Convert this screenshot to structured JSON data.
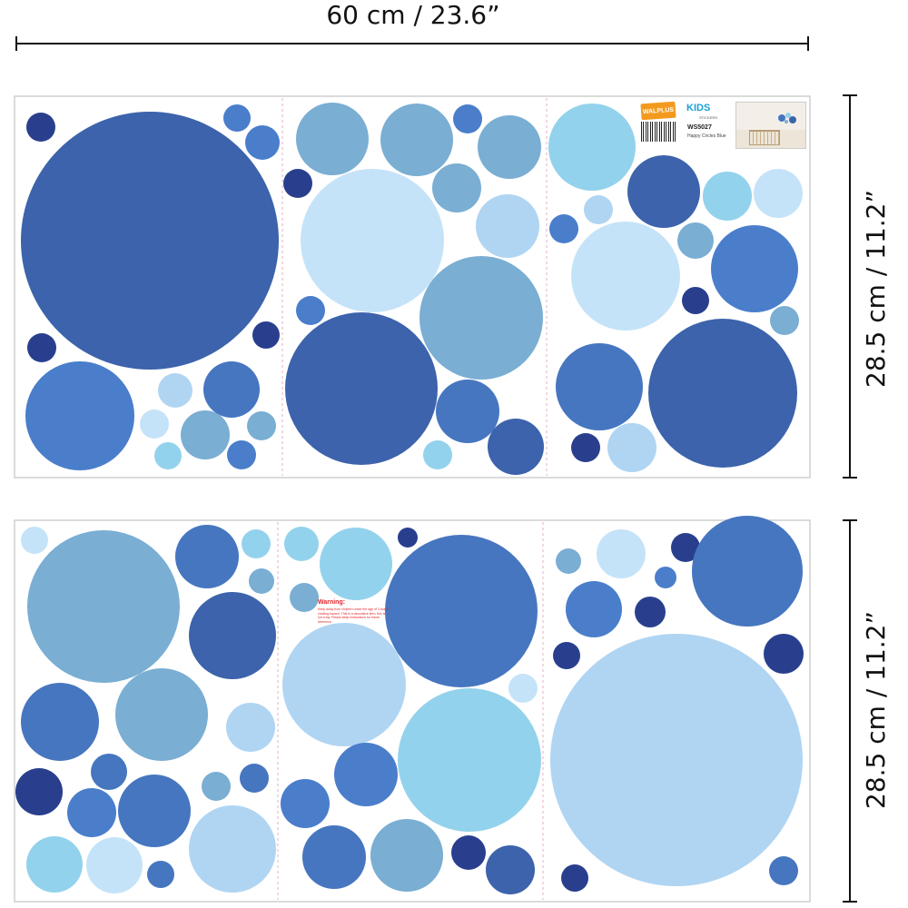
{
  "dimensions": {
    "width_label": "60 cm / 23.6”",
    "height_label_top": "28.5 cm / 11.2”",
    "height_label_bottom": "28.5 cm / 11.2”"
  },
  "product": {
    "brand": "WALPLUS",
    "kids_logo": "KIDS",
    "kids_sub": "STICKERS",
    "sku": "WS5027",
    "name": "Happy Circles Blue"
  },
  "warning": {
    "title": "Warning:",
    "text": "Keep away from children under the age of 3 due to choking hazard. This is a decorative item, this is not a toy. Please keep instructions for future reference."
  },
  "colors": {
    "c1": "#3c63ab",
    "c2": "#4676bf",
    "c3": "#7aaed3",
    "c4": "#c5e3f8",
    "c5": "#93d2ec",
    "c6": "#293f8e",
    "c7": "#b0d5f3",
    "c8": "#4a7ecb"
  }
}
